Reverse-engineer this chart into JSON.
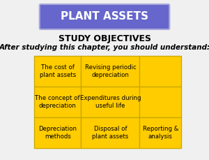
{
  "title_box_text": "PLANT ASSETS",
  "title_box_bg": "#6666cc",
  "title_box_border": "#aaaadd",
  "title_text_color": "#ffffff",
  "heading1": "STUDY OBJECTIVES",
  "heading2": "After studying this chapter, you should understand:",
  "heading_color": "#000000",
  "table_bg": "#ffcc00",
  "table_border": "#ccaa00",
  "table_cells": [
    [
      "The cost of\nplant assets",
      "Revising periodic\ndepreciation",
      ""
    ],
    [
      "The concept of\ndepreciation",
      "Expenditures during\nuseful life",
      ""
    ],
    [
      "Depreciation\nmethods",
      "Disposal of\nplant assets",
      "Reporting &\nanalysis"
    ]
  ],
  "cell_text_color": "#000000",
  "bg_color": "#f0f0f0"
}
